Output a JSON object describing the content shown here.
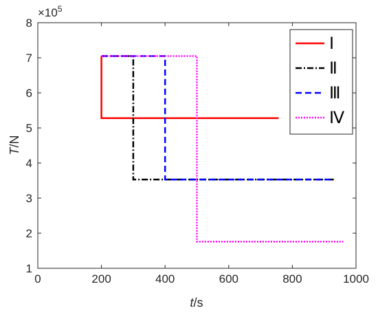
{
  "chart_data": {
    "type": "line",
    "xlabel_italic": "t",
    "xlabel_unit": "/s",
    "ylabel_italic": "T",
    "ylabel_unit": "/N",
    "exponent_label": "×10",
    "exponent_power": "5",
    "xlim": [
      0,
      1000
    ],
    "ylim": [
      1,
      8
    ],
    "y_scale_factor": 100000,
    "xticks": [
      0,
      200,
      400,
      600,
      800,
      1000
    ],
    "yticks": [
      1,
      2,
      3,
      4,
      5,
      6,
      7,
      8
    ],
    "grid": false,
    "legend_position": "top-right",
    "series": [
      {
        "name": "Ⅰ",
        "color": "#ff0000",
        "dash": "solid",
        "x": [
          200,
          200,
          757
        ],
        "y": [
          7.05,
          5.28,
          5.28
        ]
      },
      {
        "name": "Ⅱ",
        "color": "#000000",
        "dash": "dashdot",
        "x": [
          200,
          300,
          300,
          930
        ],
        "y": [
          7.05,
          7.05,
          3.53,
          3.53
        ]
      },
      {
        "name": "Ⅲ",
        "color": "#0000ff",
        "dash": "dashed",
        "x": [
          200,
          400,
          400,
          930
        ],
        "y": [
          7.05,
          7.05,
          3.53,
          3.53
        ]
      },
      {
        "name": "Ⅳ",
        "color": "#ff00ff",
        "dash": "dotted",
        "x": [
          200,
          500,
          500,
          960
        ],
        "y": [
          7.05,
          7.05,
          1.76,
          1.76
        ]
      }
    ]
  }
}
